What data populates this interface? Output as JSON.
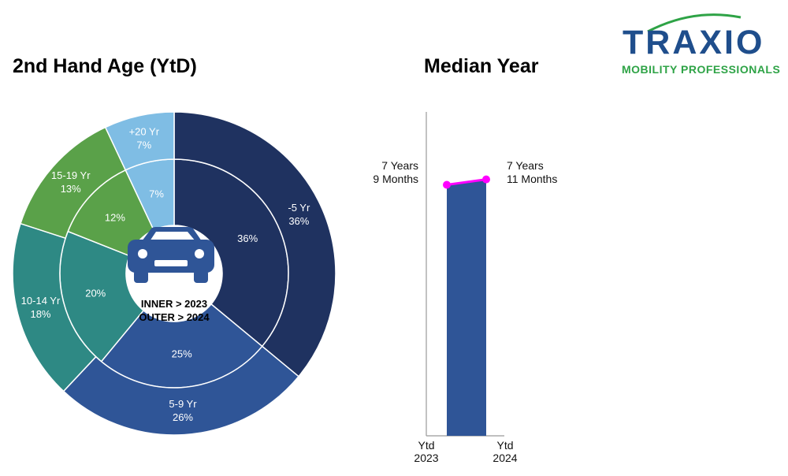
{
  "chart_data": [
    {
      "type": "pie",
      "variant": "nested-donut",
      "title": "2nd Hand Age (YtD)",
      "center_label": [
        "INNER > 2023",
        "OUTER > 2024"
      ],
      "center_icon": "car-icon",
      "categories": [
        "-5 Yr",
        "5-9 Yr",
        "10-14 Yr",
        "15-19 Yr",
        "+20 Yr"
      ],
      "colors": [
        "#1f3260",
        "#2f5597",
        "#2e8984",
        "#5aa149",
        "#7fbde4"
      ],
      "series": [
        {
          "name": "2023",
          "ring": "inner",
          "values": [
            36,
            25,
            20,
            12,
            7
          ],
          "labels": [
            "36%",
            "25%",
            "20%",
            "12%",
            "7%"
          ]
        },
        {
          "name": "2024",
          "ring": "outer",
          "values": [
            36,
            26,
            18,
            13,
            7
          ],
          "labels": [
            "-5 Yr\n36%",
            "5-9 Yr\n26%",
            "10-14 Yr\n18%",
            "15-19 Yr\n13%",
            "+20 Yr\n7%"
          ]
        }
      ]
    },
    {
      "type": "bar",
      "title": "Median Year",
      "categories": [
        "Ytd\n2023",
        "Ytd\n2024"
      ],
      "values_months": [
        93,
        95
      ],
      "value_labels": [
        "7 Years\n9 Months",
        "7 Years\n11 Months"
      ],
      "bar_color": "#2f5597",
      "line_color": "#ff00ff",
      "ylim": [
        0,
        120
      ]
    }
  ],
  "logo": {
    "name": "TRAXIO",
    "tagline": "MOBILITY PROFESSIONALS",
    "colors": {
      "blue": "#1f4e8c",
      "green": "#2ea346"
    }
  }
}
